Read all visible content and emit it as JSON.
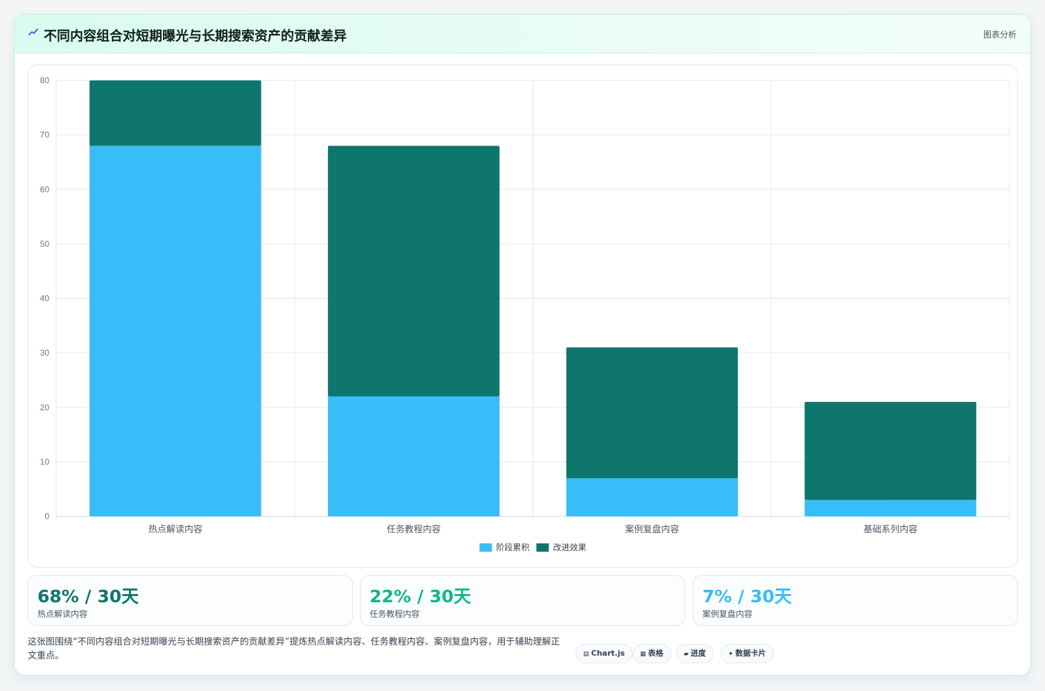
{
  "header": {
    "title": "不同内容组合对短期曝光与长期搜索资产的贡献差异",
    "action": "图表分析"
  },
  "chart_data": {
    "type": "bar",
    "stacked": true,
    "categories": [
      "热点解读内容",
      "任务教程内容",
      "案例复盘内容",
      "基础系列内容"
    ],
    "series": [
      {
        "name": "阶段累积",
        "color": "#38bdf8",
        "values": [
          68,
          22,
          7,
          3
        ]
      },
      {
        "name": "改进效果",
        "color": "#0f766e",
        "values": [
          12,
          46,
          24,
          18
        ]
      }
    ],
    "ylim": [
      0,
      80
    ],
    "yticks": [
      0,
      10,
      20,
      30,
      40,
      50,
      60,
      70,
      80
    ],
    "grid": true,
    "legend": "bottom"
  },
  "stats": [
    {
      "value": "68% / 30天",
      "label": "热点解读内容",
      "color": "#0f766e"
    },
    {
      "value": "22% / 30天",
      "label": "任务教程内容",
      "color": "#10b981"
    },
    {
      "value": "7% / 30天",
      "label": "案例复盘内容",
      "color": "#38bdf8"
    }
  ],
  "description": "这张图围绕“不同内容组合对短期曝光与长期搜索资产的贡献差异”提炼热点解读内容、任务教程内容、案例复盘内容，用于辅助理解正文重点。",
  "tags": [
    {
      "icon": "▤",
      "label": "Chart.js"
    },
    {
      "icon": "▦",
      "label": "表格"
    },
    {
      "icon": "▰",
      "label": "进度"
    },
    {
      "icon": "✦",
      "label": "数据卡片"
    }
  ]
}
